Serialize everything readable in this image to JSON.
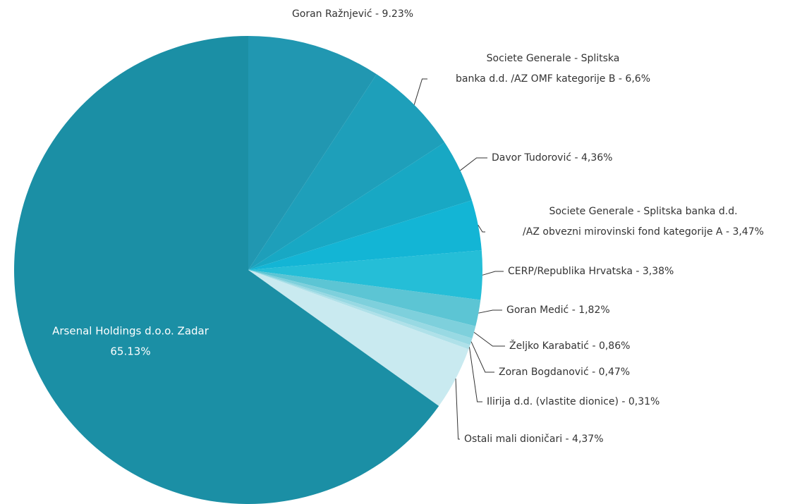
{
  "chart_data": {
    "type": "pie",
    "labels": [
      [
        "Goran Ražnjević - 9.23%"
      ],
      [
        "Societe Generale - Splitska",
        "banka d.d. /AZ OMF kategorije B - 6,6%"
      ],
      [
        "Davor Tudorović - 4,36%"
      ],
      [
        "Societe Generale - Splitska banka d.d.",
        "/AZ obvezni mirovinski fond kategorije A - 3,47%"
      ],
      [
        "CERP/Republika Hrvatska - 3,38%"
      ],
      [
        "Goran Medić - 1,82%"
      ],
      [
        "Željko Karabatić - 0,86%"
      ],
      [
        "Zoran Bogdanović - 0,47%"
      ],
      [
        "Ilirija d.d. (vlastite dionice) - 0,31%"
      ],
      [
        "Ostali mali dioničari - 4,37%"
      ],
      [
        "Arsenal Holdings d.o.o. Zadar",
        "65.13%"
      ]
    ],
    "values": [
      9.23,
      6.6,
      4.36,
      3.47,
      3.38,
      1.82,
      0.86,
      0.47,
      0.31,
      4.37,
      65.13
    ],
    "colors": [
      "#2197b1",
      "#1e9fba",
      "#18a8c4",
      "#13b5d5",
      "#25bed7",
      "#5cc5d4",
      "#7ed0dc",
      "#98d9e3",
      "#afe1e9",
      "#c9eaf0",
      "#1b8fa5"
    ]
  }
}
